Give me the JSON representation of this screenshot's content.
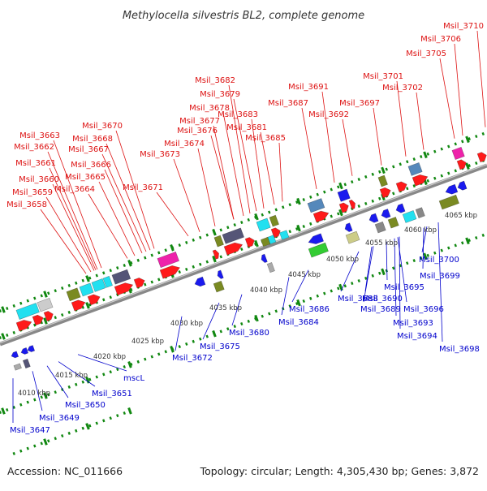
{
  "title": "Methylocella silvestris BL2, complete genome",
  "footer": {
    "accession": "Accession: NC_011666",
    "summary": "Topology: circular; Length: 4,305,430 bp; Genes: 3,872"
  },
  "colors": {
    "upper_gene_label": "#dd1111",
    "lower_gene_label": "#0000cc",
    "backbone": "#888888",
    "tick": "#118811",
    "forward_cds": "#ff1a1a",
    "reverse_cds": "#1a1aee",
    "cyan": "#22e0f0",
    "magenta": "#ee22aa",
    "olive": "#7a8a22",
    "steelblue": "#5588bb",
    "slate": "#555577"
  },
  "scale_labels": [
    "4010 kbp",
    "4015 kbp",
    "4020 kbp",
    "4025 kbp",
    "4030 kbp",
    "4035 kbp",
    "4040 kbp",
    "4045 kbp",
    "4050 kbp",
    "4055 kbp",
    "4060 kbp",
    "4065 kbp"
  ],
  "upper_labels": [
    "Msil_3710",
    "Msil_3706",
    "Msil_3705",
    "Msil_3682",
    "Msil_3691",
    "Msil_3701",
    "Msil_3702",
    "Msil_3679",
    "Msil_3687",
    "Msil_3697",
    "Msil_3678",
    "Msil_3683",
    "Msil_3692",
    "Msil_3677",
    "Msil_3681",
    "Msil_3676",
    "Msil_3685",
    "Msil_3670",
    "Msil_3663",
    "Msil_3674",
    "Msil_3668",
    "Msil_3662",
    "Msil_3673",
    "Msil_3667",
    "Msil_3661",
    "Msil_3666",
    "Msil_3660",
    "Msil_3665",
    "Msil_3671",
    "Msil_3659",
    "Msil_3664",
    "Msil_3658"
  ],
  "lower_labels": [
    "Msil_3700",
    "Msil_3699",
    "Msil_3695",
    "Msil_3688",
    "Msil_3690",
    "Msil_3686",
    "Msil_3689",
    "Msil_3696",
    "Msil_3684",
    "Msil_3693",
    "Msil_3680",
    "Msil_3675",
    "Msil_3694",
    "Msil_3698",
    "Msil_3672",
    "mscL",
    "Msil_3651",
    "Msil_3650",
    "Msil_3649",
    "Msil_3647"
  ]
}
